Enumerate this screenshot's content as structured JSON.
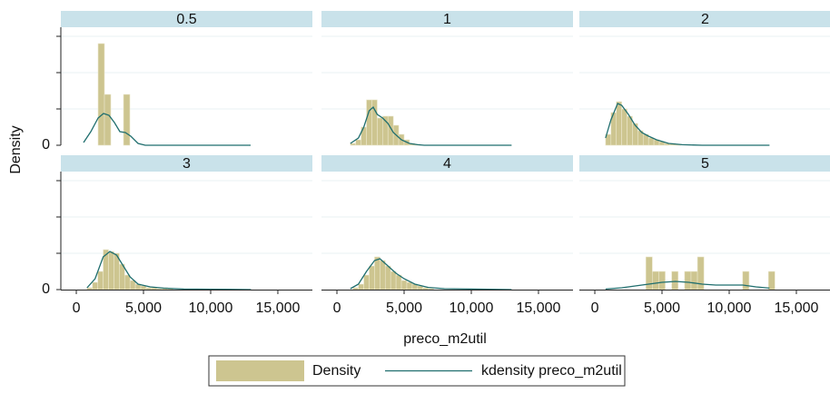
{
  "chart_data": {
    "type": "histogram",
    "y_label": "Density",
    "x_label": "preco_m2util",
    "xlim": [
      -1150,
      17570
    ],
    "ylim": [
      0,
      0.00065
    ],
    "xticks": [
      0,
      {
        "value": 5000,
        "label": "5,000"
      },
      {
        "value": 10000,
        "label": "10,000"
      },
      {
        "value": 15000,
        "label": "15,000"
      }
    ],
    "yticks": [
      0
    ],
    "y_minor_ticks": [
      0.0002,
      0.0004,
      0.0006
    ],
    "grid": true,
    "legend": "bottom",
    "series": [
      {
        "name": "Density",
        "color": "#cdc590"
      },
      {
        "name": "kdensity preco_m2util",
        "color": "#1f6e6e"
      }
    ],
    "panels": [
      {
        "title": "0.5",
        "bins": [
          1622,
          2095,
          2568,
          3041,
          3514,
          3987
        ],
        "values": [
          0.00056,
          0.00028,
          0,
          0,
          0.00028
        ],
        "kde_x": [
          540,
          1081,
          1622,
          2027,
          2432,
          2838,
          3243,
          3649,
          4054,
          4595,
          5135,
          12973
        ],
        "kde_values": [
          1.5e-05,
          7.5e-05,
          0.00015,
          0.000175,
          0.000165,
          0.000125,
          7.5e-05,
          7e-05,
          5e-05,
          1e-05,
          0,
          0
        ]
      },
      {
        "title": "1",
        "bins": [
          1000,
          1400,
          1800,
          2200,
          2600,
          3000,
          3400,
          3800,
          4200,
          4600,
          5000,
          5400,
          5800,
          6200
        ],
        "values": [
          1e-05,
          3e-05,
          0.0001,
          0.00025,
          0.00025,
          0.00015,
          0.00016,
          0.00016,
          0.00011,
          6e-05,
          3e-05,
          1e-05,
          5e-06
        ],
        "kde_x": [
          1000,
          1600,
          2000,
          2400,
          2700,
          3000,
          3400,
          3800,
          4200,
          4800,
          5400,
          6000,
          6500,
          13000
        ],
        "kde_values": [
          1e-05,
          4e-05,
          0.0001,
          0.00019,
          0.00021,
          0.00017,
          0.00015,
          0.00012,
          7e-05,
          3e-05,
          1e-05,
          3e-06,
          0,
          0
        ]
      },
      {
        "title": "2",
        "bins": [
          800,
          1200,
          1600,
          2000,
          2400,
          2800,
          3200,
          3600,
          4000,
          4400,
          4800,
          5200,
          5600,
          6000,
          6400
        ],
        "values": [
          6e-05,
          0.00018,
          0.00024,
          0.0002,
          0.00016,
          0.00012,
          8e-05,
          6e-05,
          4e-05,
          3e-05,
          2e-05,
          1e-05,
          1e-05,
          5e-06
        ],
        "kde_x": [
          800,
          1200,
          1700,
          2000,
          2500,
          3000,
          3500,
          4000,
          4600,
          5500,
          6500,
          8000,
          13000
        ],
        "kde_values": [
          4e-05,
          0.00014,
          0.00023,
          0.00022,
          0.00017,
          0.00011,
          7e-05,
          5e-05,
          3e-05,
          1e-05,
          3e-06,
          0,
          0
        ]
      },
      {
        "title": "3",
        "bins": [
          800,
          1200,
          1600,
          2000,
          2400,
          2800,
          3200,
          3600,
          4000,
          4400,
          4800,
          5200,
          5600,
          6000,
          6400,
          6800,
          7200
        ],
        "values": [
          1e-05,
          4e-05,
          0.0001,
          0.00022,
          0.00021,
          0.0002,
          0.00014,
          8e-05,
          5e-05,
          3e-05,
          2e-05,
          1e-05,
          1e-05,
          5e-06,
          1e-05,
          5e-06
        ],
        "kde_x": [
          800,
          1400,
          2000,
          2500,
          3000,
          3500,
          4000,
          4600,
          5500,
          6500,
          8000,
          10000,
          13000
        ],
        "kde_values": [
          1e-05,
          6e-05,
          0.00018,
          0.00021,
          0.00019,
          0.00013,
          7e-05,
          3e-05,
          1.5e-05,
          8e-06,
          3e-06,
          2e-06,
          0
        ]
      },
      {
        "title": "4",
        "bins": [
          1200,
          1600,
          2000,
          2400,
          2800,
          3200,
          3600,
          4000,
          4400,
          4800,
          5200,
          5600,
          6000,
          6400,
          6800,
          7200
        ],
        "values": [
          1e-05,
          3e-05,
          8e-05,
          0.00013,
          0.00018,
          0.00016,
          0.00013,
          0.0001,
          8e-05,
          5e-05,
          4e-05,
          3e-05,
          2e-05,
          1e-05,
          5e-06
        ],
        "kde_x": [
          1000,
          1600,
          2200,
          2800,
          3200,
          3800,
          4400,
          5000,
          5800,
          6800,
          8000,
          10000,
          13000
        ],
        "kde_values": [
          5e-06,
          3e-05,
          0.0001,
          0.00016,
          0.00017,
          0.00013,
          9e-05,
          6e-05,
          3e-05,
          1.2e-05,
          5e-06,
          3e-06,
          0
        ]
      },
      {
        "title": "5",
        "bins": [
          3800,
          4280,
          4760,
          5240,
          5720,
          6200,
          6680,
          7160,
          7640,
          8120,
          8600,
          9080,
          9560,
          10040,
          10520,
          11000,
          11480,
          11960,
          12440,
          12920,
          13400
        ],
        "values": [
          0.00018,
          0.0001,
          0.0001,
          0,
          0.0001,
          0,
          0.0001,
          0.0001,
          0.00018,
          0,
          0,
          0,
          0,
          0,
          0,
          0.0001,
          0,
          0,
          0,
          0.0001
        ],
        "kde_x": [
          800,
          2000,
          3000,
          4000,
          5000,
          6000,
          7000,
          8000,
          9000,
          10000,
          11000,
          12000,
          13000
        ],
        "kde_values": [
          3e-06,
          1e-05,
          2e-05,
          3e-05,
          4e-05,
          4.5e-05,
          4e-05,
          3e-05,
          2.5e-05,
          2.5e-05,
          2.5e-05,
          1.5e-05,
          8e-06
        ]
      }
    ]
  }
}
